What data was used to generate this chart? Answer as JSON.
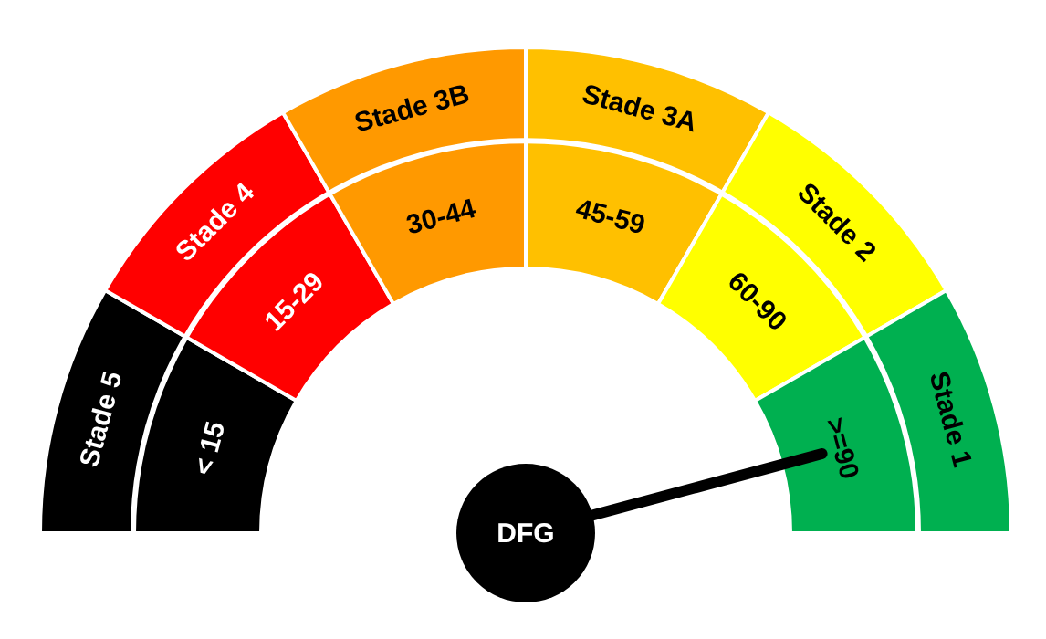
{
  "chart_data": {
    "type": "donut",
    "categories": [
      "Stade 5",
      "Stade 4",
      "Stade 3B",
      "Stade 3A",
      "Stade 2",
      "Stade 1"
    ],
    "value_labels": [
      "< 15",
      "15-29",
      "30-44",
      "45-59",
      "60-90",
      ">=90"
    ],
    "values": [
      16.66,
      16.67,
      16.67,
      16.67,
      16.67,
      16.66
    ],
    "colors": [
      "#000000",
      "#ff0000",
      "#ff9900",
      "#ffc000",
      "#ffff00",
      "#00b050"
    ],
    "needle": "Stade 1",
    "annotations": [
      "DFG"
    ]
  }
}
